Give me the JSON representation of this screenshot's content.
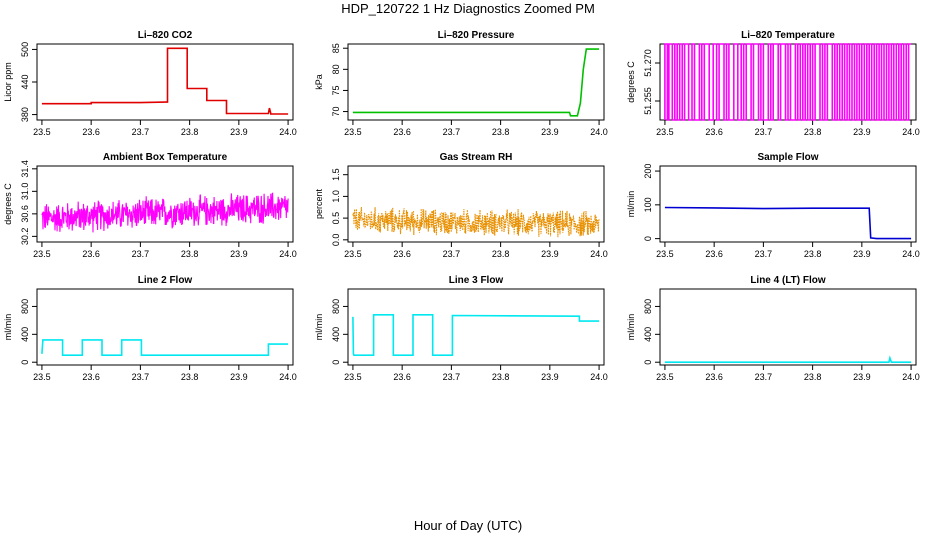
{
  "page": {
    "title": "HDP_120722  1 Hz Diagnostics Zoomed PM",
    "xlabel": "Hour of Day (UTC)"
  },
  "chart_data": [
    {
      "id": "co2",
      "type": "line",
      "title": "Li–820 CO2",
      "ylabel": "Licor ppm",
      "color": "#e00000",
      "xlim": [
        23.49,
        24.01
      ],
      "ylim": [
        370,
        510
      ],
      "xticks": [
        "23.5",
        "23.6",
        "23.7",
        "23.8",
        "23.9",
        "24.0"
      ],
      "yticks": [
        "380",
        "440",
        "500"
      ],
      "x": [
        23.5,
        23.6,
        23.6,
        23.7,
        23.75,
        23.755,
        23.755,
        23.795,
        23.795,
        23.835,
        23.835,
        23.875,
        23.875,
        23.96,
        23.962,
        23.965,
        23.965,
        24.0
      ],
      "y": [
        400,
        400,
        402,
        402,
        403,
        403,
        502,
        502,
        428,
        428,
        406,
        406,
        382,
        382,
        392,
        382,
        381,
        381
      ]
    },
    {
      "id": "pressure",
      "type": "line",
      "title": "Li–820 Pressure",
      "ylabel": "kPa",
      "color": "#00c000",
      "xlim": [
        23.49,
        24.01
      ],
      "ylim": [
        68,
        86
      ],
      "xticks": [
        "23.5",
        "23.6",
        "23.7",
        "23.8",
        "23.9",
        "24.0"
      ],
      "yticks": [
        "70",
        "75",
        "80",
        "85"
      ],
      "x": [
        23.5,
        23.7,
        23.94,
        23.942,
        23.956,
        23.962,
        23.968,
        23.974,
        24.0
      ],
      "y": [
        69.8,
        69.8,
        69.8,
        69.0,
        69.0,
        72,
        80,
        84.8,
        84.8
      ]
    },
    {
      "id": "temp820",
      "type": "line",
      "title": "Li–820 Temperature",
      "ylabel": "degrees C",
      "color": "#ff00ff",
      "xlim": [
        23.49,
        24.01
      ],
      "ylim": [
        51.2475,
        51.2775
      ],
      "xticks": [
        "23.5",
        "23.6",
        "23.7",
        "23.8",
        "23.9",
        "24.0"
      ],
      "yticks": [
        "51.255",
        "51.270"
      ],
      "levels": [
        51.2475,
        51.2775
      ],
      "switches": [
        23.5,
        23.505,
        23.508,
        23.515,
        23.52,
        23.525,
        23.53,
        23.535,
        23.54,
        23.548,
        23.555,
        23.56,
        23.57,
        23.575,
        23.58,
        23.59,
        23.598,
        23.605,
        23.61,
        23.62,
        23.625,
        23.63,
        23.64,
        23.648,
        23.655,
        23.66,
        23.665,
        23.675,
        23.68,
        23.69,
        23.695,
        23.7,
        23.71,
        23.715,
        23.72,
        23.73,
        23.735,
        23.745,
        23.75,
        23.755,
        23.765,
        23.77,
        23.775,
        23.78,
        23.785,
        23.79,
        23.795,
        23.8,
        23.805,
        23.815,
        23.82,
        23.825,
        23.83,
        23.84,
        23.845,
        23.85,
        23.855,
        23.86,
        23.865,
        23.87,
        23.875,
        23.88,
        23.885,
        23.89,
        23.895,
        23.9,
        23.905,
        23.91,
        23.915,
        23.92,
        23.925,
        23.93,
        23.935,
        23.94,
        23.945,
        23.95,
        23.955,
        23.96,
        23.965,
        23.97,
        23.975,
        23.98,
        23.985,
        23.99,
        23.995
      ]
    },
    {
      "id": "ambient",
      "type": "noise",
      "title": "Ambient Box Temperature",
      "ylabel": "degrees C",
      "color": "#ff00ff",
      "xlim": [
        23.49,
        24.01
      ],
      "ylim": [
        30.1,
        31.45
      ],
      "xticks": [
        "23.5",
        "23.6",
        "23.7",
        "23.8",
        "23.9",
        "24.0"
      ],
      "yticks": [
        "30.2",
        "30.6",
        "31.0",
        "31.4"
      ],
      "base": 30.52,
      "base_end": 30.72,
      "spread": 0.32,
      "min": 30.15,
      "max": 31.42
    },
    {
      "id": "rh",
      "type": "noise",
      "title": "Gas Stream RH",
      "ylabel": "percent",
      "color": "#e89000",
      "xlim": [
        23.49,
        24.01
      ],
      "ylim": [
        -0.05,
        1.7
      ],
      "xticks": [
        "23.5",
        "23.6",
        "23.7",
        "23.8",
        "23.9",
        "24.0"
      ],
      "yticks": [
        "0.0",
        "0.5",
        "1.0",
        "1.5"
      ],
      "base": 0.45,
      "base_end": 0.35,
      "spread": 0.35,
      "min": 0.0,
      "max": 1.6
    },
    {
      "id": "sample",
      "type": "line",
      "title": "Sample Flow",
      "ylabel": "ml/min",
      "color": "#0000d0",
      "xlim": [
        23.49,
        24.01
      ],
      "ylim": [
        -10,
        215
      ],
      "xticks": [
        "23.5",
        "23.6",
        "23.7",
        "23.8",
        "23.9",
        "24.0"
      ],
      "yticks": [
        "0",
        "100",
        "200"
      ],
      "x": [
        23.5,
        23.6,
        23.7,
        23.8,
        23.915,
        23.918,
        23.93,
        24.0
      ],
      "y": [
        92,
        91,
        89,
        90,
        90,
        2,
        0,
        0
      ]
    },
    {
      "id": "line2",
      "type": "line",
      "title": "Line 2 Flow",
      "ylabel": "ml/min",
      "color": "#00e8f0",
      "xlim": [
        23.49,
        24.01
      ],
      "ylim": [
        -40,
        1050
      ],
      "xticks": [
        "23.5",
        "23.6",
        "23.7",
        "23.8",
        "23.9",
        "24.0"
      ],
      "yticks": [
        "0",
        "400",
        "800"
      ],
      "x": [
        23.5,
        23.502,
        23.542,
        23.542,
        23.582,
        23.582,
        23.622,
        23.622,
        23.662,
        23.662,
        23.702,
        23.702,
        23.75,
        23.96,
        23.96,
        24.0
      ],
      "y": [
        120,
        320,
        320,
        100,
        100,
        320,
        320,
        100,
        100,
        320,
        320,
        100,
        100,
        100,
        260,
        260
      ]
    },
    {
      "id": "line3",
      "type": "line",
      "title": "Line 3 Flow",
      "ylabel": "ml/min",
      "color": "#00e8f0",
      "xlim": [
        23.49,
        24.01
      ],
      "ylim": [
        -40,
        1050
      ],
      "xticks": [
        "23.5",
        "23.6",
        "23.7",
        "23.8",
        "23.9",
        "24.0"
      ],
      "yticks": [
        "0",
        "400",
        "800"
      ],
      "x": [
        23.5,
        23.501,
        23.502,
        23.542,
        23.542,
        23.582,
        23.582,
        23.622,
        23.622,
        23.662,
        23.662,
        23.702,
        23.702,
        23.96,
        23.96,
        24.0
      ],
      "y": [
        650,
        120,
        100,
        100,
        680,
        680,
        100,
        100,
        680,
        680,
        100,
        100,
        670,
        660,
        590,
        590
      ]
    },
    {
      "id": "line4",
      "type": "line",
      "title": "Line 4 (LT) Flow",
      "ylabel": "ml/min",
      "color": "#00e8f0",
      "xlim": [
        23.49,
        24.01
      ],
      "ylim": [
        -40,
        1050
      ],
      "xticks": [
        "23.5",
        "23.6",
        "23.7",
        "23.8",
        "23.9",
        "24.0"
      ],
      "yticks": [
        "0",
        "400",
        "800"
      ],
      "x": [
        23.5,
        23.955,
        23.957,
        23.96,
        23.962,
        24.0
      ],
      "y": [
        0,
        0,
        60,
        0,
        0,
        0
      ]
    }
  ]
}
